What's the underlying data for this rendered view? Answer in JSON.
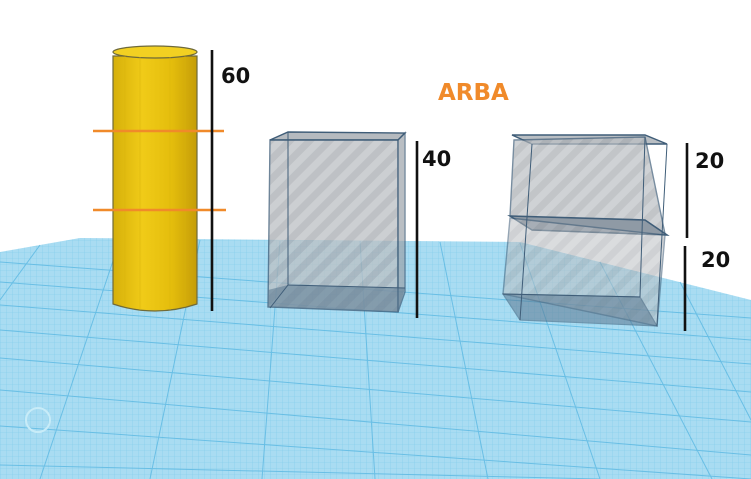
{
  "scene": {
    "title": "ARBA",
    "colors": {
      "title": "#f08a2a",
      "cylinder_fill": "#e9c30e",
      "cylinder_shade": "#c7a10a",
      "cut_lines": "#f08a2a",
      "box_edge": "#3f5d78",
      "box_fill": "#8a929c",
      "workplane": "#a9dcf2",
      "grid_line": "#68c2e8",
      "dimension_line": "#111111"
    },
    "objects": [
      {
        "shape": "cylinder",
        "dimension": "60"
      },
      {
        "shape": "box",
        "dimension": "40"
      },
      {
        "shape": "stacked-boxes",
        "dimensions": [
          "20",
          "20"
        ]
      }
    ]
  }
}
